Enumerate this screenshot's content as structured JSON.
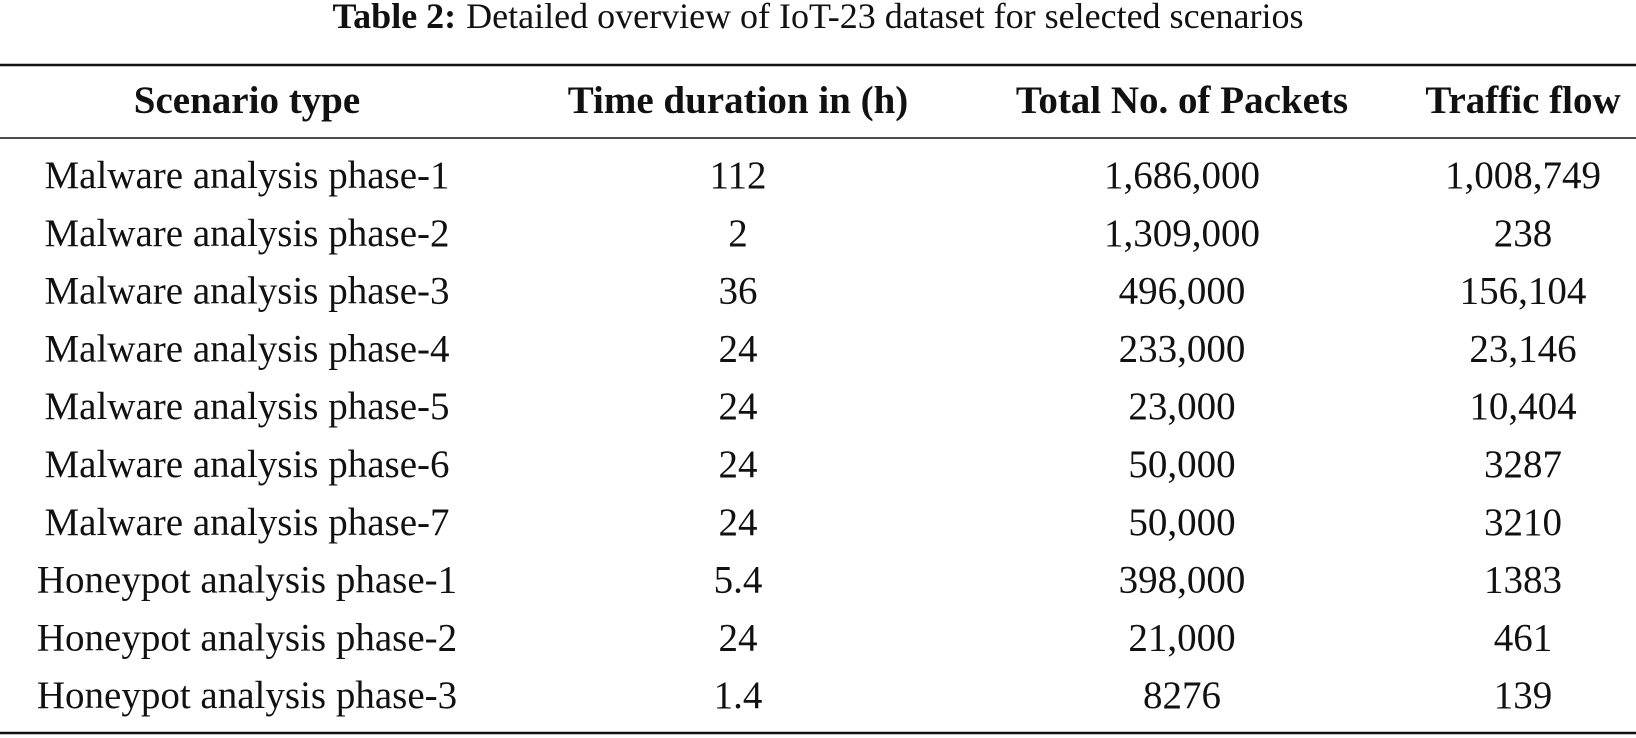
{
  "table": {
    "caption_label": "Table 2:",
    "caption_text": "Detailed overview of IoT-23 dataset for selected scenarios",
    "header": [
      "Scenario type",
      "Time duration in (h)",
      "Total No. of Packets",
      "Traffic flow"
    ],
    "rows": [
      [
        "Malware analysis phase-1",
        "112",
        "1,686,000",
        "1,008,749"
      ],
      [
        "Malware analysis phase-2",
        "2",
        "1,309,000",
        "238"
      ],
      [
        "Malware analysis phase-3",
        "36",
        "496,000",
        "156,104"
      ],
      [
        "Malware analysis phase-4",
        "24",
        "233,000",
        "23,146"
      ],
      [
        "Malware analysis phase-5",
        "24",
        "23,000",
        "10,404"
      ],
      [
        "Malware analysis phase-6",
        "24",
        "50,000",
        "3287"
      ],
      [
        "Malware analysis phase-7",
        "24",
        "50,000",
        "3210"
      ],
      [
        "Honeypot analysis phase-1",
        "5.4",
        "398,000",
        "1383"
      ],
      [
        "Honeypot analysis phase-2",
        "24",
        "21,000",
        "461"
      ],
      [
        "Honeypot analysis phase-3",
        "1.4",
        "8276",
        "139"
      ]
    ]
  }
}
